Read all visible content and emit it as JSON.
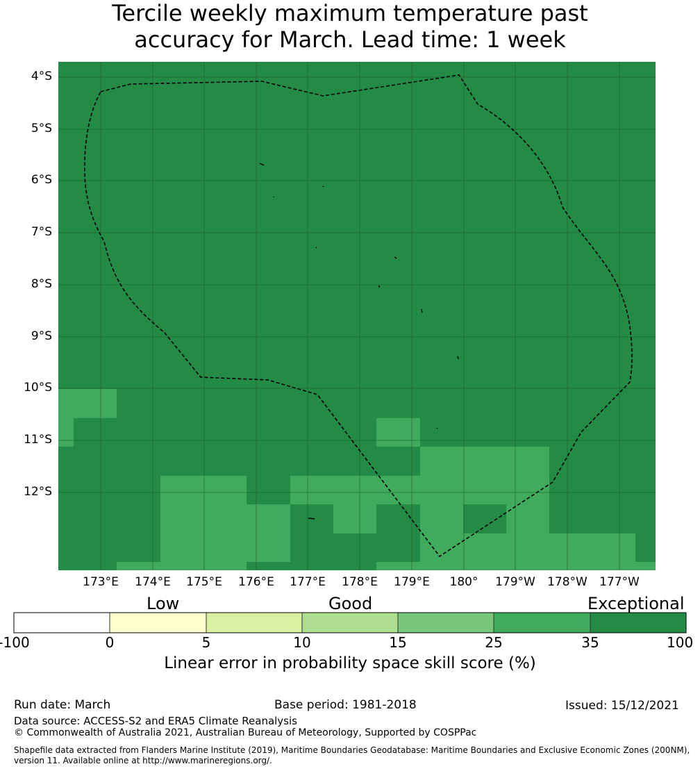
{
  "title": {
    "line1": "Tercile weekly maximum temperature past",
    "line2": "accuracy for March. Lead time: 1 week"
  },
  "map": {
    "lat_labels": [
      "4°S",
      "5°S",
      "6°S",
      "7°S",
      "8°S",
      "9°S",
      "10°S",
      "11°S",
      "12°S"
    ],
    "lon_labels": [
      "173°E",
      "174°E",
      "175°E",
      "176°E",
      "177°E",
      "178°E",
      "179°E",
      "180°",
      "179°W",
      "178°W",
      "177°W"
    ],
    "colors": {
      "exceptional": "#238b45",
      "skill_25_35": "#41ab5d",
      "gridline": "#1a5e2f",
      "boundary": "#000000"
    }
  },
  "colorbar": {
    "categories": [
      "Low",
      "Good",
      "Exceptional"
    ],
    "ticks": [
      "-100",
      "0",
      "5",
      "10",
      "15",
      "25",
      "35",
      "100"
    ],
    "colors": [
      "#ffffff",
      "#ffffcc",
      "#d9f0a3",
      "#addd8e",
      "#78c679",
      "#41ab5d",
      "#238b45"
    ],
    "label": "Linear error in probability space skill score (%)"
  },
  "footer": {
    "run_date": "Run date: March",
    "base_period": "Base period: 1981-2018",
    "issued": "Issued: 15/12/2021",
    "data_source": "Data source: ACCESS-S2 and ERA5 Climate Reanalysis",
    "copyright": "© Commonwealth of Australia 2021, Australian Bureau of Meteorology, Supported by COSPPac",
    "shapefile_line1": "Shapefile data extracted from Flanders Marine Institute (2019), Maritime Boundaries Geodatabase: Maritime Boundaries and Exclusive Economic Zones (200NM),",
    "shapefile_line2": "version 11. Available online at http://www.marineregions.org/."
  }
}
